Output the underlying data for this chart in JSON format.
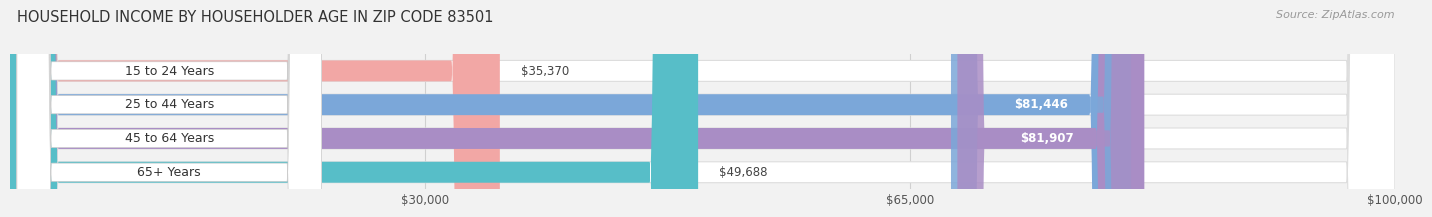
{
  "title": "HOUSEHOLD INCOME BY HOUSEHOLDER AGE IN ZIP CODE 83501",
  "source": "Source: ZipAtlas.com",
  "categories": [
    "15 to 24 Years",
    "25 to 44 Years",
    "45 to 64 Years",
    "65+ Years"
  ],
  "values": [
    35370,
    81446,
    81907,
    49688
  ],
  "bar_colors": [
    "#f2a7a5",
    "#7ba7d9",
    "#a98dc5",
    "#57bec8"
  ],
  "xmin": 0,
  "xmax": 100000,
  "xticks": [
    30000,
    65000,
    100000
  ],
  "xtick_labels": [
    "$30,000",
    "$65,000",
    "$100,000"
  ],
  "background_color": "#f2f2f2",
  "bar_bg_color": "#ffffff",
  "bar_bg_outline": "#dddddd",
  "title_fontsize": 10.5,
  "source_fontsize": 8,
  "label_fontsize": 9,
  "value_fontsize": 8.5,
  "tick_fontsize": 8.5
}
